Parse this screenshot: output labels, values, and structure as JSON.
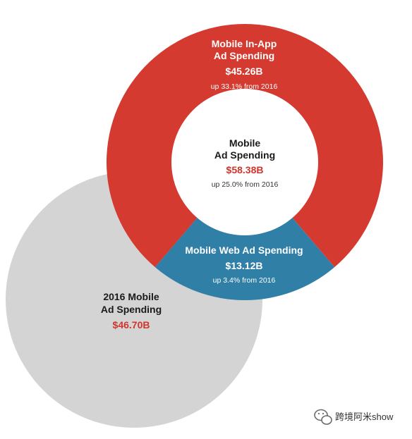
{
  "chart_data": {
    "type": "pie",
    "colors": {
      "mobile_in_app": "#d43a2f",
      "mobile_web": "#2f7fa7",
      "center": "#ffffff",
      "prior_year": "#d4d4d4"
    },
    "center": {
      "title_line1": "Mobile",
      "title_line2": "Ad Spending",
      "value": "$58.38B",
      "change": "up 25.0% from 2016"
    },
    "slices": [
      {
        "key": "in_app",
        "title_line1": "Mobile In-App",
        "title_line2": "Ad Spending",
        "value_label": "$45.26B",
        "value": 45.26,
        "change": "up 33.1% from 2016"
      },
      {
        "key": "web",
        "title_line1": "Mobile Web Ad Spending",
        "value_label": "$13.12B",
        "value": 13.12,
        "change": "up 3.4% from 2016"
      }
    ],
    "prior": {
      "title_line1": "2016 Mobile",
      "title_line2": "Ad Spending",
      "value_label": "$46.70B",
      "value": 46.7
    }
  },
  "watermark": {
    "text": "跨境阿米show",
    "icon": "wechat-bubble-icon"
  }
}
